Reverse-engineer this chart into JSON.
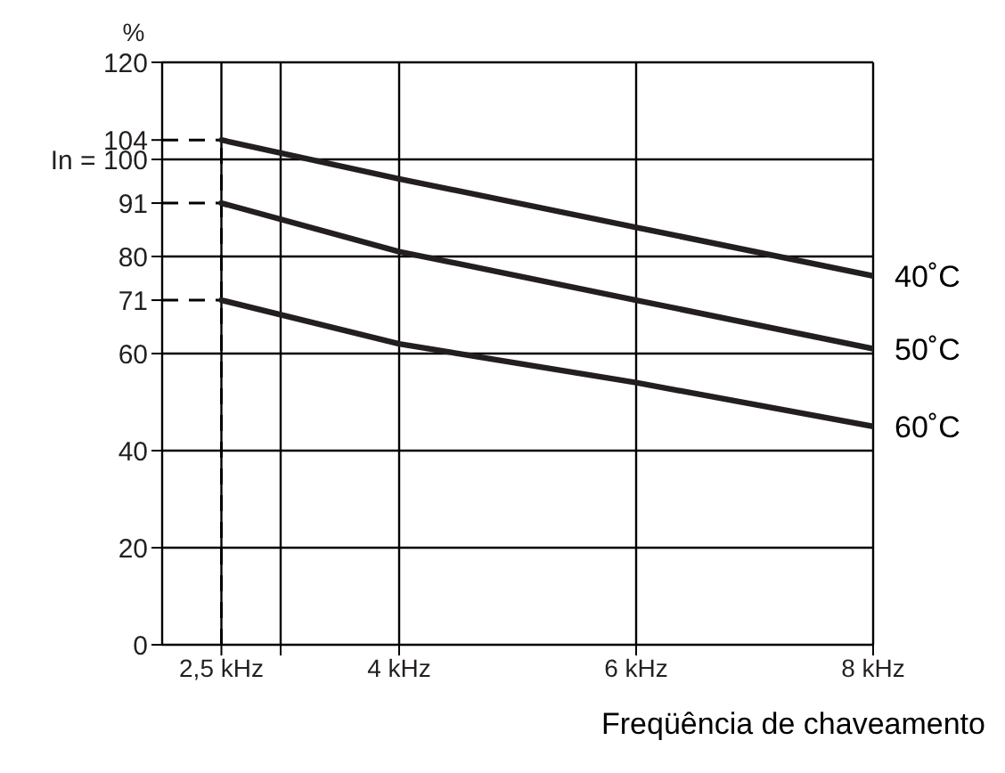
{
  "chart_data": {
    "type": "line",
    "xlabel": "Freqüência de chaveamento",
    "ylabel": "%",
    "x": [
      2.5,
      4,
      6,
      8
    ],
    "series": [
      {
        "name": "40˚C",
        "color": "#231f20",
        "values": [
          104,
          96,
          86,
          76
        ]
      },
      {
        "name": "50˚C",
        "color": "#231f20",
        "values": [
          91,
          81,
          71,
          61
        ]
      },
      {
        "name": "60˚C",
        "color": "#231f20",
        "values": [
          71,
          62,
          54,
          45
        ]
      }
    ],
    "xlim": [
      2,
      8
    ],
    "xticks": [
      {
        "value": 2.5,
        "label": "2,5 kHz"
      },
      {
        "value": 3,
        "label": null
      },
      {
        "value": 4,
        "label": "4 kHz"
      },
      {
        "value": 6,
        "label": "6 kHz"
      },
      {
        "value": 8,
        "label": "8 kHz"
      }
    ],
    "ylim": [
      0,
      120
    ],
    "yticks": [
      0,
      20,
      40,
      60,
      71,
      80,
      91,
      {
        "value": 100,
        "label": "In = 100"
      },
      104,
      120
    ],
    "ref_lines": [
      {
        "axis": "x",
        "value": 2.5,
        "line_style": "dashed",
        "color": "#000000"
      },
      {
        "axis": "y",
        "value": 104,
        "line_style": "dashed",
        "color": "#000000"
      },
      {
        "axis": "y",
        "value": 91,
        "line_style": "dashed",
        "color": "#000000"
      },
      {
        "axis": "y",
        "value": 71,
        "line_style": "dashed",
        "color": "#000000"
      }
    ],
    "grid": true,
    "legend": false,
    "marker": "none",
    "line_style": "solid"
  }
}
